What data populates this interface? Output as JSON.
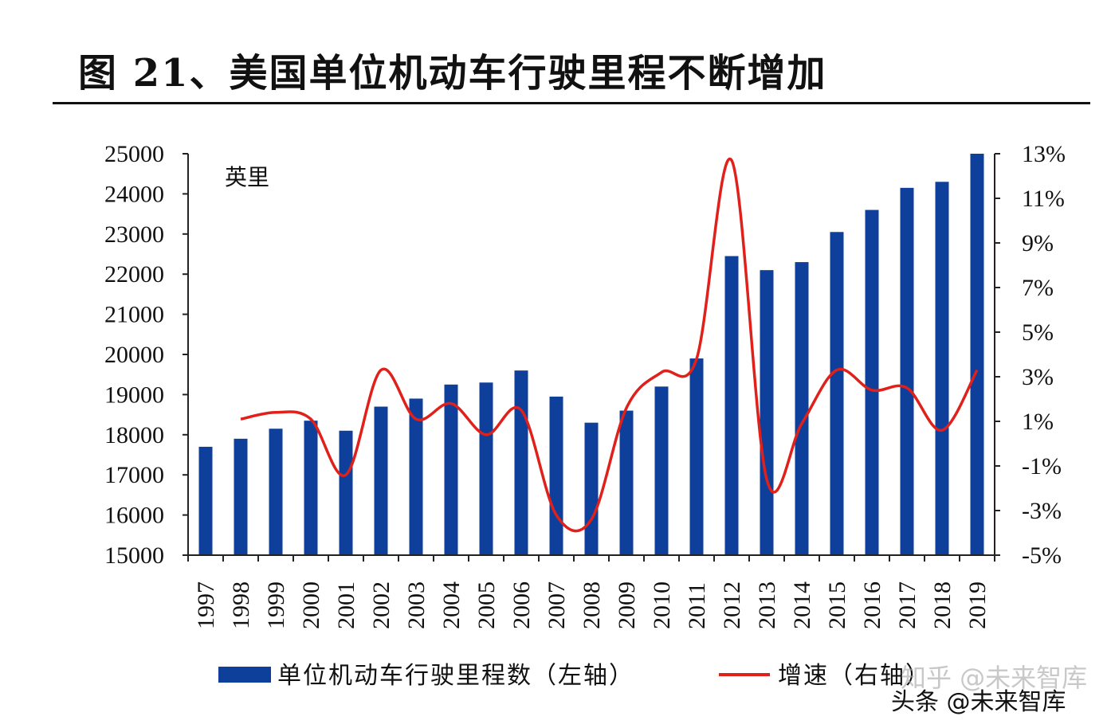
{
  "title": "图 21、美国单位机动车行驶里程不断增加",
  "watermark_top": "知乎 @未来智库",
  "watermark_bottom": "头条 @未来智库",
  "colors": {
    "bar": "#0e3f9a",
    "line": "#e0201b",
    "axis": "#222222"
  },
  "chart_data": {
    "type": "bar",
    "title": "图 21、美国单位机动车行驶里程不断增加",
    "unit_label": "英里",
    "categories": [
      "1997",
      "1998",
      "1999",
      "2000",
      "2001",
      "2002",
      "2003",
      "2004",
      "2005",
      "2006",
      "2007",
      "2008",
      "2009",
      "2010",
      "2011",
      "2012",
      "2013",
      "2014",
      "2015",
      "2016",
      "2017",
      "2018",
      "2019"
    ],
    "series": [
      {
        "name": "单位机动车行驶里程数（左轴）",
        "type": "bar",
        "axis": "left",
        "values": [
          17700,
          17900,
          18150,
          18350,
          18100,
          18700,
          18900,
          19250,
          19300,
          19600,
          18950,
          18300,
          18600,
          19200,
          19900,
          22450,
          22100,
          22300,
          23050,
          23600,
          24150,
          24300,
          25000
        ]
      },
      {
        "name": "增速（右轴）",
        "type": "line",
        "axis": "right",
        "values": [
          null,
          1.1,
          1.4,
          1.1,
          -1.4,
          3.3,
          1.1,
          1.8,
          0.4,
          1.5,
          -3.2,
          -3.4,
          1.6,
          3.2,
          3.8,
          12.7,
          -1.6,
          0.9,
          3.3,
          2.4,
          2.5,
          0.6,
          3.3
        ]
      }
    ],
    "y_left": {
      "min": 15000,
      "max": 25000,
      "ticks": [
        "15000",
        "16000",
        "17000",
        "18000",
        "19000",
        "20000",
        "21000",
        "22000",
        "23000",
        "24000",
        "25000"
      ]
    },
    "y_right": {
      "min": -5,
      "max": 13,
      "ticks": [
        "-5%",
        "-3%",
        "-1%",
        "1%",
        "3%",
        "5%",
        "7%",
        "9%",
        "11%",
        "13%"
      ]
    },
    "legend_position": "bottom"
  }
}
